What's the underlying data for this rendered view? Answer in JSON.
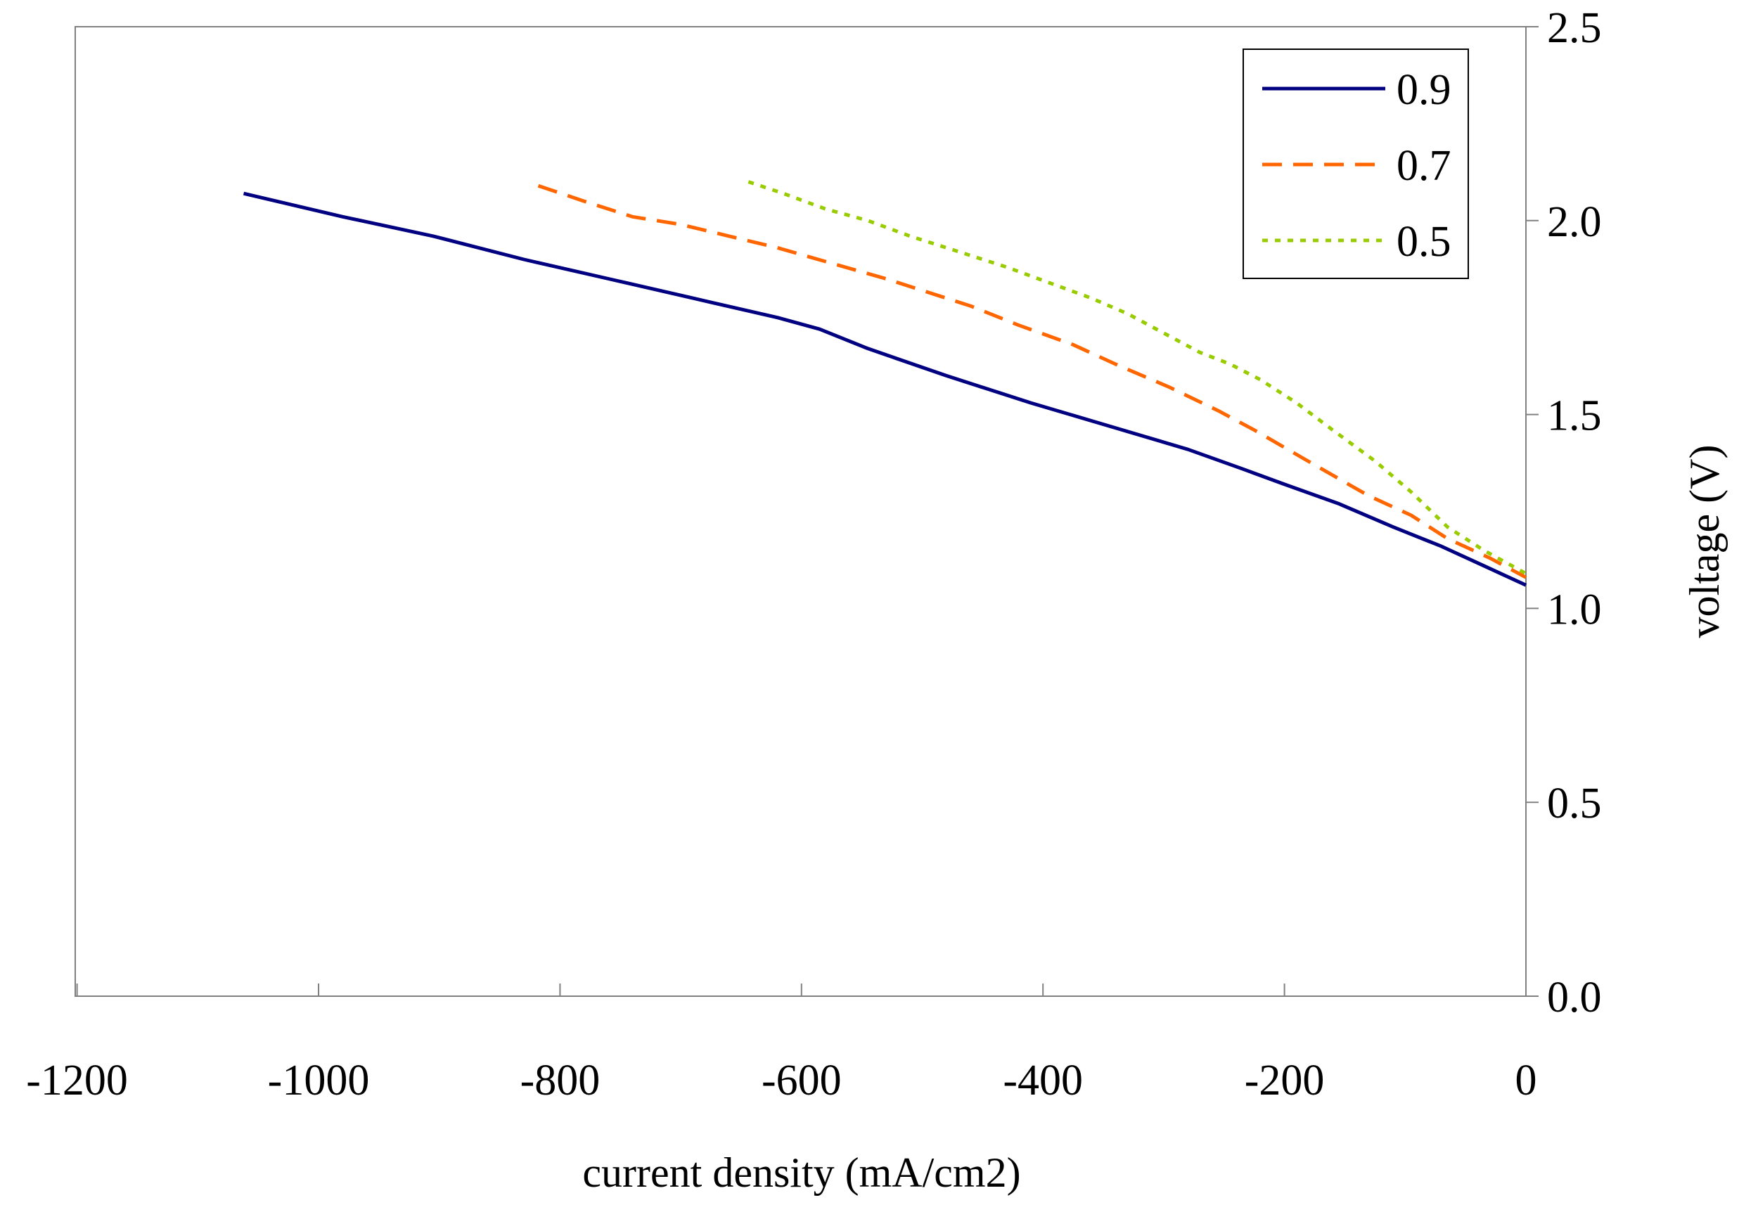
{
  "chart_data": {
    "type": "line",
    "title": "",
    "xlabel": "current density (mA/cm2)",
    "ylabel": "voltage (V)",
    "xlim": [
      -1200,
      0
    ],
    "ylim": [
      0,
      2.5
    ],
    "x_ticks": [
      -1200,
      -1000,
      -800,
      -600,
      -400,
      -200,
      0
    ],
    "x_tick_labels": [
      "-1200",
      "-1000",
      "-800",
      "-600",
      "-400",
      "-200",
      "0"
    ],
    "y_ticks": [
      0,
      0.5,
      1.0,
      1.5,
      2.0,
      2.5
    ],
    "y_tick_labels": [
      "0.0",
      "0.5",
      "1.0",
      "1.5",
      "2.0",
      "2.5"
    ],
    "y_axis_side": "right",
    "grid": false,
    "legend_position": "top-right",
    "series": [
      {
        "name": "0.9",
        "color": "#000080",
        "dash": "solid",
        "x": [
          -1062,
          -980,
          -905,
          -830,
          -760,
          -690,
          -620,
          -585,
          -545,
          -480,
          -410,
          -345,
          -280,
          -235,
          -200,
          -155,
          -110,
          -70,
          -35,
          0
        ],
        "y": [
          2.07,
          2.01,
          1.96,
          1.9,
          1.85,
          1.8,
          1.75,
          1.72,
          1.67,
          1.6,
          1.53,
          1.47,
          1.41,
          1.36,
          1.32,
          1.27,
          1.21,
          1.16,
          1.11,
          1.06
        ]
      },
      {
        "name": "0.7",
        "color": "#FF6600",
        "dash": "dashed",
        "x": [
          -818,
          -780,
          -740,
          -700,
          -660,
          -620,
          -575,
          -530,
          -500,
          -460,
          -420,
          -375,
          -340,
          -295,
          -255,
          -225,
          -175,
          -130,
          -95,
          -65,
          -30,
          0
        ],
        "y": [
          2.09,
          2.05,
          2.01,
          1.99,
          1.96,
          1.93,
          1.89,
          1.85,
          1.82,
          1.78,
          1.73,
          1.68,
          1.63,
          1.57,
          1.51,
          1.46,
          1.37,
          1.29,
          1.24,
          1.18,
          1.13,
          1.08
        ]
      },
      {
        "name": "0.5",
        "color": "#99CC00",
        "dash": "dotted",
        "x": [
          -644,
          -615,
          -580,
          -545,
          -510,
          -470,
          -430,
          -395,
          -360,
          -330,
          -300,
          -270,
          -245,
          -220,
          -190,
          -160,
          -125,
          -95,
          -65,
          -35,
          0
        ],
        "y": [
          2.1,
          2.07,
          2.03,
          2.0,
          1.96,
          1.92,
          1.88,
          1.84,
          1.8,
          1.76,
          1.71,
          1.66,
          1.63,
          1.59,
          1.53,
          1.46,
          1.38,
          1.3,
          1.21,
          1.15,
          1.09
        ]
      }
    ]
  }
}
